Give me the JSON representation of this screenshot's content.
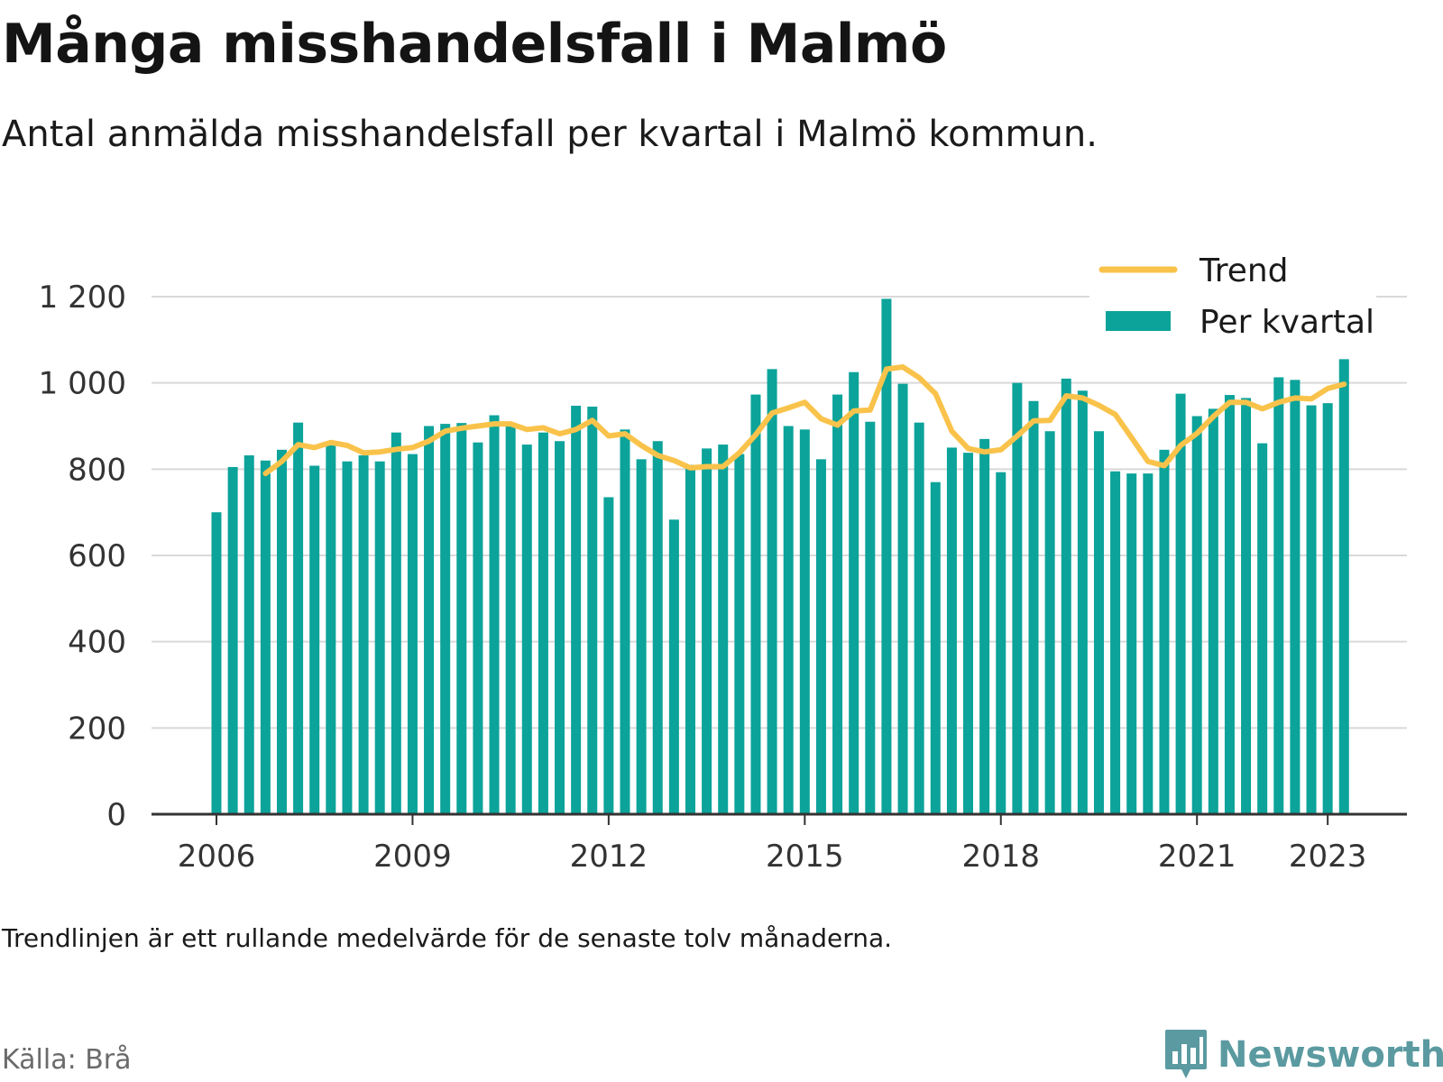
{
  "header": {
    "title": "Många misshandelsfall i Malmö",
    "subtitle": "Antal anmälda misshandelsfall per kvartal i Malmö kommun."
  },
  "footer": {
    "note": "Trendlinjen är ett rullande medelvärde för de senaste tolv månaderna.",
    "source": "Källa: Brå",
    "brand": "Newsworthy",
    "brand_icon": "bar-chart-speech-bubble-icon"
  },
  "colors": {
    "bars": "#0ba39a",
    "trend": "#f9c34b",
    "grid": "#d9d9d9",
    "axis": "#333333",
    "brand": "#5a9aa0"
  },
  "chart_data": {
    "type": "bar",
    "ylim": [
      0,
      1200
    ],
    "yticks": [
      0,
      200,
      400,
      600,
      800,
      1000,
      1200
    ],
    "ytick_labels": [
      "0",
      "200",
      "400",
      "600",
      "800",
      "1 000",
      "1 200"
    ],
    "xticks": [
      {
        "label": "2006",
        "index": 0
      },
      {
        "label": "2009",
        "index": 12
      },
      {
        "label": "2012",
        "index": 24
      },
      {
        "label": "2015",
        "index": 36
      },
      {
        "label": "2018",
        "index": 48
      },
      {
        "label": "2021",
        "index": 60
      },
      {
        "label": "2023",
        "index": 68
      }
    ],
    "legend_position": "top-right",
    "grid": true,
    "categories": [
      "2006 Q1",
      "2006 Q2",
      "2006 Q3",
      "2006 Q4",
      "2007 Q1",
      "2007 Q2",
      "2007 Q3",
      "2007 Q4",
      "2008 Q1",
      "2008 Q2",
      "2008 Q3",
      "2008 Q4",
      "2009 Q1",
      "2009 Q2",
      "2009 Q3",
      "2009 Q4",
      "2010 Q1",
      "2010 Q2",
      "2010 Q3",
      "2010 Q4",
      "2011 Q1",
      "2011 Q2",
      "2011 Q3",
      "2011 Q4",
      "2012 Q1",
      "2012 Q2",
      "2012 Q3",
      "2012 Q4",
      "2013 Q1",
      "2013 Q2",
      "2013 Q3",
      "2013 Q4",
      "2014 Q1",
      "2014 Q2",
      "2014 Q3",
      "2014 Q4",
      "2015 Q1",
      "2015 Q2",
      "2015 Q3",
      "2015 Q4",
      "2016 Q1",
      "2016 Q2",
      "2016 Q3",
      "2016 Q4",
      "2017 Q1",
      "2017 Q2",
      "2017 Q3",
      "2017 Q4",
      "2018 Q1",
      "2018 Q2",
      "2018 Q3",
      "2018 Q4",
      "2019 Q1",
      "2019 Q2",
      "2019 Q3",
      "2019 Q4",
      "2020 Q1",
      "2020 Q2",
      "2020 Q3",
      "2020 Q4",
      "2021 Q1",
      "2021 Q2",
      "2021 Q3",
      "2021 Q4",
      "2022 Q1",
      "2022 Q2",
      "2022 Q3",
      "2022 Q4",
      "2023 Q1",
      "2023 Q2"
    ],
    "series": [
      {
        "name": "Per kvartal",
        "kind": "bar",
        "values": [
          700,
          805,
          832,
          820,
          845,
          908,
          808,
          855,
          818,
          832,
          818,
          885,
          835,
          900,
          905,
          907,
          862,
          925,
          905,
          857,
          885,
          865,
          947,
          945,
          735,
          892,
          823,
          865,
          683,
          810,
          848,
          857,
          835,
          973,
          1032,
          900,
          892,
          823,
          973,
          1025,
          910,
          1195,
          998,
          908,
          770,
          850,
          838,
          870,
          793,
          1000,
          958,
          888,
          1010,
          982,
          888,
          795,
          790,
          790,
          845,
          975,
          923,
          940,
          972,
          965,
          860,
          1013,
          1007,
          948,
          953,
          1055
        ]
      },
      {
        "name": "Trend",
        "kind": "line",
        "values": [
          null,
          null,
          null,
          790,
          818,
          857,
          850,
          862,
          855,
          838,
          840,
          846,
          850,
          865,
          888,
          895,
          900,
          905,
          905,
          892,
          896,
          882,
          892,
          913,
          877,
          882,
          855,
          832,
          820,
          803,
          806,
          806,
          838,
          880,
          930,
          942,
          955,
          917,
          902,
          935,
          937,
          1032,
          1037,
          1012,
          975,
          888,
          848,
          840,
          845,
          877,
          912,
          913,
          970,
          965,
          948,
          927,
          873,
          818,
          808,
          855,
          883,
          922,
          955,
          955,
          940,
          955,
          965,
          963,
          987,
          997
        ]
      }
    ]
  }
}
